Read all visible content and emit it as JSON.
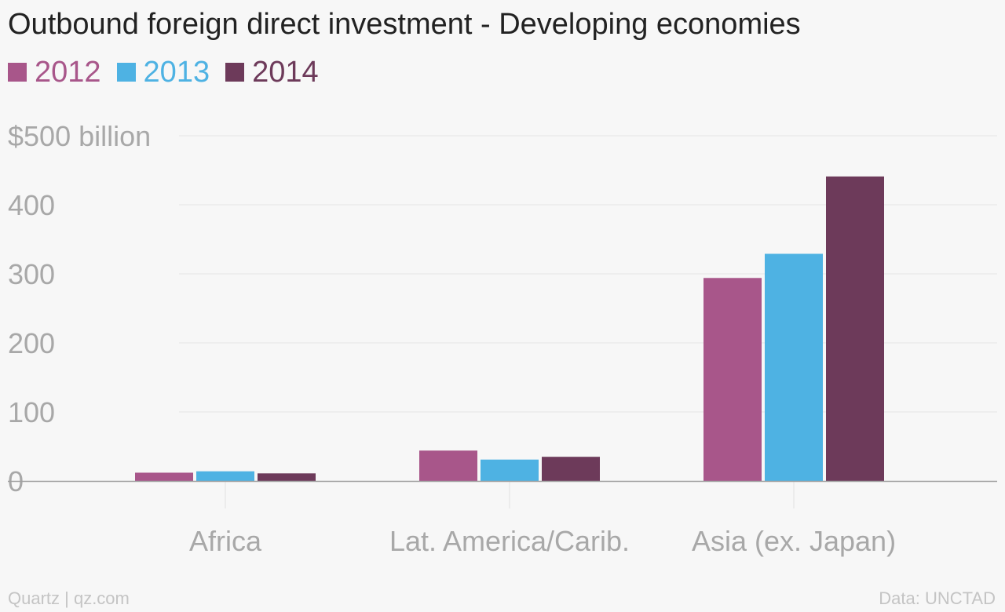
{
  "chart_data": {
    "type": "bar",
    "title": "Outbound foreign direct investment - Developing economies",
    "categories": [
      "Africa",
      "Lat. America/Carib.",
      "Asia (ex. Japan)"
    ],
    "series": [
      {
        "name": "2012",
        "color": "#a8568a",
        "values": [
          12,
          44,
          294
        ]
      },
      {
        "name": "2013",
        "color": "#4eb2e3",
        "values": [
          14,
          31,
          329
        ]
      },
      {
        "name": "2014",
        "color": "#6d3a5a",
        "values": [
          11,
          35,
          441
        ]
      }
    ],
    "ylim": [
      0,
      500
    ],
    "yticks": [
      0,
      100,
      200,
      300,
      400,
      500
    ],
    "ytick_labels": [
      "0",
      "100",
      "200",
      "300",
      "400",
      "$500 billion"
    ],
    "grid": true,
    "legend_position": "top-left"
  },
  "footer": {
    "source_left": "Quartz | qz.com",
    "source_right": "Data: UNCTAD"
  }
}
